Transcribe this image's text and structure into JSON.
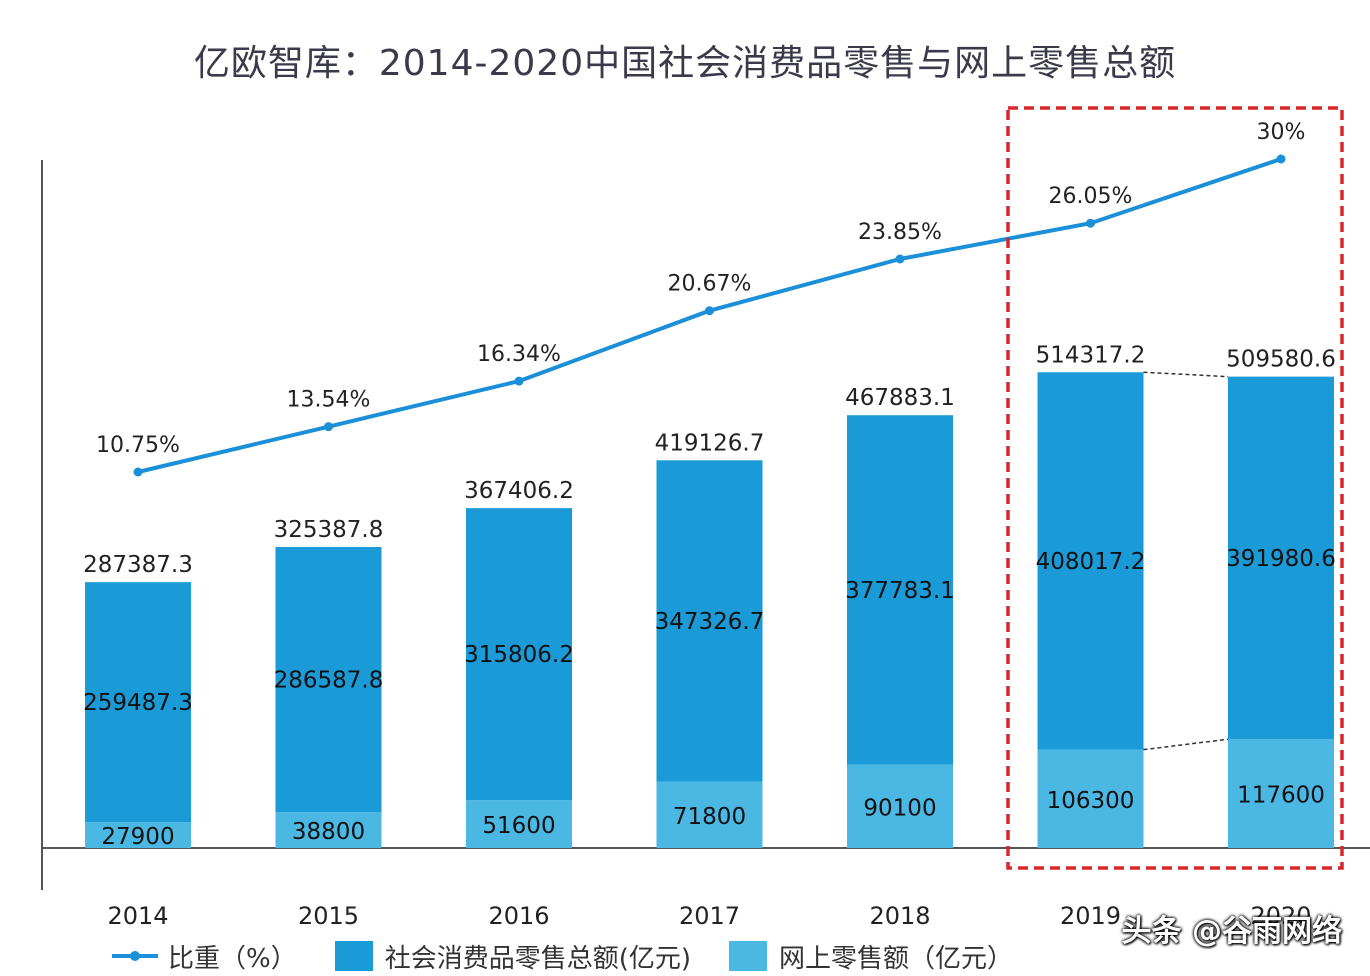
{
  "title": "亿欧智库：2014-2020中国社会消费品零售与网上零售总额",
  "colors": {
    "offline": "#1a9ad6",
    "online": "#4ab8e3",
    "line": "#1c8fd9",
    "highlight": "#d9262b",
    "axis": "#555555"
  },
  "legend": {
    "line_label": "比重（%）",
    "offline_label": "社会消费品零售总额(亿元)",
    "online_label": "网上零售额（亿元）"
  },
  "watermark": "头条 @谷雨网络",
  "chart_data": {
    "type": "bar",
    "title": "亿欧智库：2014-2020中国社会消费品零售与网上零售总额",
    "categories": [
      "2014",
      "2015",
      "2016",
      "2017",
      "2018",
      "2019",
      "2020"
    ],
    "series": [
      {
        "name": "网上零售额（亿元）",
        "stack": "total",
        "values": [
          27900,
          38800,
          51600,
          71800,
          90100,
          106300,
          117600
        ]
      },
      {
        "name": "社会消费品零售总额(亿元)",
        "stack": "total",
        "values": [
          259487.3,
          286587.8,
          315806.2,
          347326.7,
          377783.1,
          408017.2,
          391980.6
        ]
      },
      {
        "name": "比重（%）",
        "type": "line",
        "values": [
          10.75,
          13.54,
          16.34,
          20.67,
          23.85,
          26.05,
          30
        ]
      }
    ],
    "totals": [
      287387.3,
      325387.8,
      367406.2,
      419126.7,
      467883.1,
      514317.2,
      509580.6
    ],
    "total_labels": [
      "287387.3",
      "325387.8",
      "367406.2",
      "419126.7",
      "467883.1",
      "514317.2",
      "509580.6"
    ],
    "offline_labels": [
      "259487.3",
      "286587.8",
      "315806.2",
      "347326.7",
      "377783.1",
      "408017.2",
      "391980.6"
    ],
    "online_labels": [
      "27900",
      "38800",
      "51600",
      "71800",
      "90100",
      "106300",
      "117600"
    ],
    "pct_labels": [
      "10.75%",
      "13.54%",
      "16.34%",
      "20.67%",
      "23.85%",
      "26.05%",
      "30%"
    ],
    "highlight_categories": [
      "2019",
      "2020"
    ],
    "ylim": [
      0,
      560000
    ],
    "pct_ylim": [
      0,
      40
    ],
    "legend_position": "bottom",
    "grid": false
  }
}
